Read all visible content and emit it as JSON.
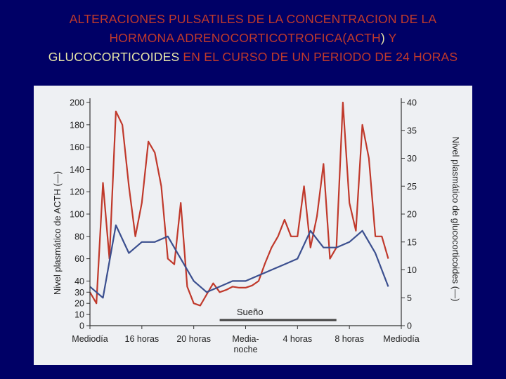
{
  "title": {
    "l1_red": "ALTERACIONES PULSATILES DE LA CONCENTRACION DE LA",
    "l2_red": "HORMONA ADRENOCORTICOTROFICA(ACTH",
    "l2_paren": ")",
    "l2_y": " Y",
    "l3_yellow": "GLUCOCORTICOIDES",
    "l3_red": " EN EL CURSO DE UN PERIODO DE 24 HORAS"
  },
  "colors": {
    "acth": "#c0392b",
    "cortisol": "#3b4f8f",
    "sleep": "#444444"
  },
  "chart_data": {
    "type": "line",
    "x_categories": [
      "Mediodía",
      "16 horas",
      "20 horas",
      "Media-noche",
      "4 horas",
      "8 horas",
      "Mediodía"
    ],
    "x_tick_lines": [
      [
        "Mediodía"
      ],
      [
        "16 horas"
      ],
      [
        "20 horas"
      ],
      [
        "Media-",
        "noche"
      ],
      [
        "4 horas"
      ],
      [
        "8 horas"
      ],
      [
        "Mediodía"
      ]
    ],
    "xlim": [
      0,
      24
    ],
    "y_left": {
      "label": "Nivel plasmático de ACTH (—)",
      "lim": [
        0,
        200
      ],
      "ticks": [
        "0",
        "10",
        "20",
        "30",
        "40",
        "60",
        "80",
        "100",
        "120",
        "140",
        "160",
        "180",
        "200"
      ]
    },
    "y_right": {
      "label": "Nivel plasmático de glucocorticoides (—)",
      "lim": [
        0,
        40
      ],
      "ticks": [
        "0",
        "5",
        "10",
        "15",
        "20",
        "25",
        "30",
        "35",
        "40"
      ]
    },
    "sleep_label": "Sueño",
    "sleep_range": [
      10,
      19
    ],
    "series": [
      {
        "name": "ACTH",
        "axis": "left",
        "x": [
          0,
          0.5,
          1,
          1.5,
          2,
          2.5,
          3,
          3.5,
          4,
          4.5,
          5,
          5.5,
          6,
          6.5,
          7,
          7.5,
          8,
          8.5,
          9,
          9.5,
          10,
          10.5,
          11,
          11.5,
          12,
          12.5,
          13,
          13.5,
          14,
          14.5,
          15,
          15.5,
          16,
          16.5,
          17,
          17.5,
          18,
          18.5,
          19,
          19.5,
          20,
          20.5,
          21,
          21.5,
          22,
          22.5,
          23
        ],
        "y": [
          30,
          20,
          128,
          60,
          192,
          180,
          125,
          80,
          110,
          165,
          155,
          125,
          60,
          55,
          110,
          35,
          20,
          18,
          28,
          38,
          30,
          32,
          35,
          34,
          34,
          36,
          40,
          56,
          70,
          80,
          95,
          80,
          80,
          125,
          70,
          98,
          145,
          60,
          70,
          200,
          110,
          85,
          180,
          150,
          80,
          80,
          60
        ]
      },
      {
        "name": "Glucocorticoides",
        "axis": "right",
        "x": [
          0,
          1,
          2,
          3,
          4,
          5,
          6,
          7,
          8,
          9,
          10,
          11,
          12,
          13,
          14,
          15,
          16,
          17,
          18,
          19,
          20,
          21,
          22,
          23
        ],
        "y": [
          7,
          5,
          18,
          13,
          15,
          15,
          16,
          12,
          8,
          6,
          7,
          8,
          8,
          9,
          10,
          11,
          12,
          17,
          14,
          14,
          15,
          17,
          13,
          7
        ]
      }
    ]
  }
}
